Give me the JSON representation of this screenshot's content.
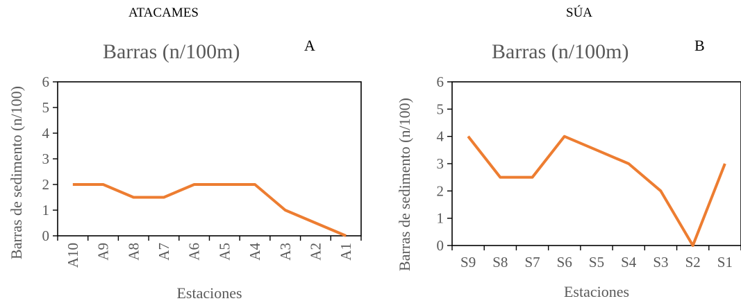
{
  "chart_data": [
    {
      "type": "line",
      "header": "ATACAMES",
      "panel_letter": "A",
      "title": "Barras (n/100m)",
      "xlabel": "Estaciones",
      "ylabel": "Barras de sedimento (n/100)",
      "categories": [
        "A10",
        "A9",
        "A8",
        "A7",
        "A6",
        "A5",
        "A4",
        "A3",
        "A2",
        "A1"
      ],
      "values": [
        2,
        2,
        1.5,
        1.5,
        2,
        2,
        2,
        1,
        0.5,
        0
      ],
      "ylim": [
        0,
        6
      ],
      "yticks": [
        "0",
        "1",
        "2",
        "3",
        "4",
        "5",
        "6"
      ],
      "grid": false,
      "line_color": "#ED7D31"
    },
    {
      "type": "line",
      "header": "SÚA",
      "panel_letter": "B",
      "title": "Barras (n/100m)",
      "xlabel": "Estaciones",
      "ylabel": "Barras de sedimento (n/100)",
      "categories": [
        "S9",
        "S8",
        "S7",
        "S6",
        "S5",
        "S4",
        "S3",
        "S2",
        "S1"
      ],
      "values": [
        4,
        2.5,
        2.5,
        4,
        3.5,
        3,
        2,
        0,
        3
      ],
      "ylim": [
        0,
        6
      ],
      "yticks": [
        "0",
        "1",
        "2",
        "3",
        "4",
        "5",
        "6"
      ],
      "grid": false,
      "line_color": "#ED7D31"
    }
  ]
}
